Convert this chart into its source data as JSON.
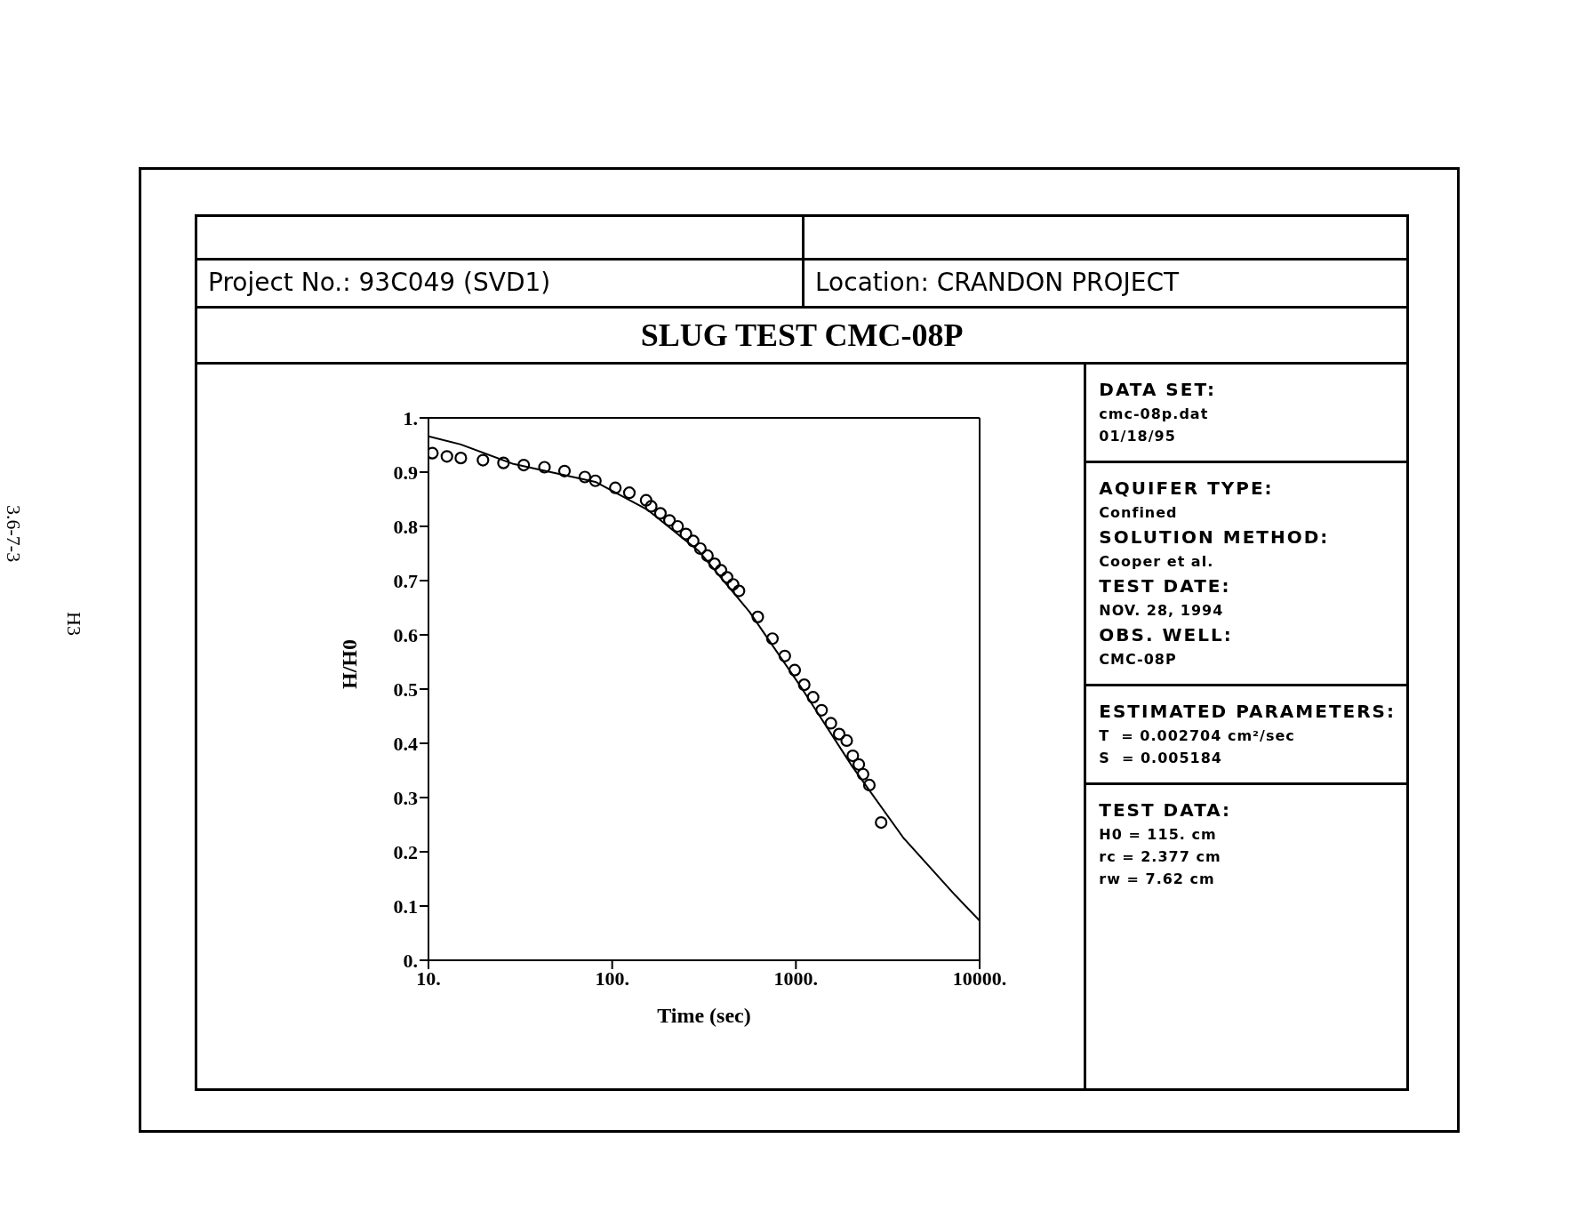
{
  "chart_data": {
    "type": "scatter",
    "title": "SLUG TEST CMC-08P",
    "xlabel": "Time (sec)",
    "ylabel": "H/H0",
    "log": "x",
    "marker": "circle",
    "grid": false,
    "legend": false,
    "xlim": [
      10,
      10000
    ],
    "xticks": [
      {
        "value": 10,
        "label": "10."
      },
      {
        "value": 100,
        "label": "100."
      },
      {
        "value": 1000,
        "label": "1000."
      },
      {
        "value": 10000,
        "label": "10000."
      }
    ],
    "ylim": [
      0,
      1
    ],
    "yticks": [
      {
        "value": 0,
        "label": "0."
      },
      0.1,
      0.2,
      0.3,
      0.4,
      0.5,
      0.6,
      0.7,
      0.8,
      0.9,
      {
        "value": 1,
        "label": "1."
      }
    ],
    "series": [
      {
        "color": "#000000",
        "x": [
          10.5,
          12.6,
          15,
          19.8,
          25.6,
          33,
          42.8,
          55,
          71,
          81,
          104,
          124,
          153,
          163,
          183,
          205,
          227,
          252,
          276,
          302,
          330,
          361,
          391,
          422,
          455,
          490,
          620,
          745,
          870,
          985,
          1110,
          1240,
          1380,
          1550,
          1720,
          1890,
          2040,
          2200,
          2320,
          2510,
          2910
        ],
        "values": [
          0.935,
          0.929,
          0.926,
          0.922,
          0.917,
          0.913,
          0.909,
          0.902,
          0.891,
          0.884,
          0.871,
          0.862,
          0.848,
          0.837,
          0.824,
          0.811,
          0.8,
          0.786,
          0.773,
          0.759,
          0.746,
          0.731,
          0.719,
          0.706,
          0.693,
          0.681,
          0.633,
          0.593,
          0.561,
          0.535,
          0.508,
          0.485,
          0.461,
          0.437,
          0.417,
          0.405,
          0.377,
          0.361,
          0.343,
          0.323,
          0.254
        ]
      },
      {
        "type": "line",
        "color": "#000000",
        "marker": "none",
        "x": [
          10,
          15,
          29,
          81,
          155,
          295,
          560,
          1060,
          2020,
          3860,
          7360,
          10000
        ],
        "values": [
          0.966,
          0.951,
          0.915,
          0.882,
          0.831,
          0.755,
          0.642,
          0.505,
          0.358,
          0.225,
          0.12,
          0.073
        ]
      }
    ],
    "annotations": [
      "Project No.: 93C049 (SVD1)",
      "Location: CRANDON PROJECT",
      "DATA SET:",
      "cmc-08p.dat",
      "01/18/95",
      "AQUIFER TYPE:",
      "Confined",
      "SOLUTION METHOD:",
      "Cooper et al.",
      "TEST DATE:",
      "NOV. 28, 1994",
      "OBS. WELL:",
      "CMC-08P",
      "ESTIMATED PARAMETERS:",
      "T  = 0.002704 cm²/sec",
      "S  = 0.005184",
      "TEST DATA:",
      "H0 = 115. cm",
      "rc = 2.377 cm",
      "rw = 7.62 cm",
      "H3",
      "3.6-7-3"
    ]
  }
}
